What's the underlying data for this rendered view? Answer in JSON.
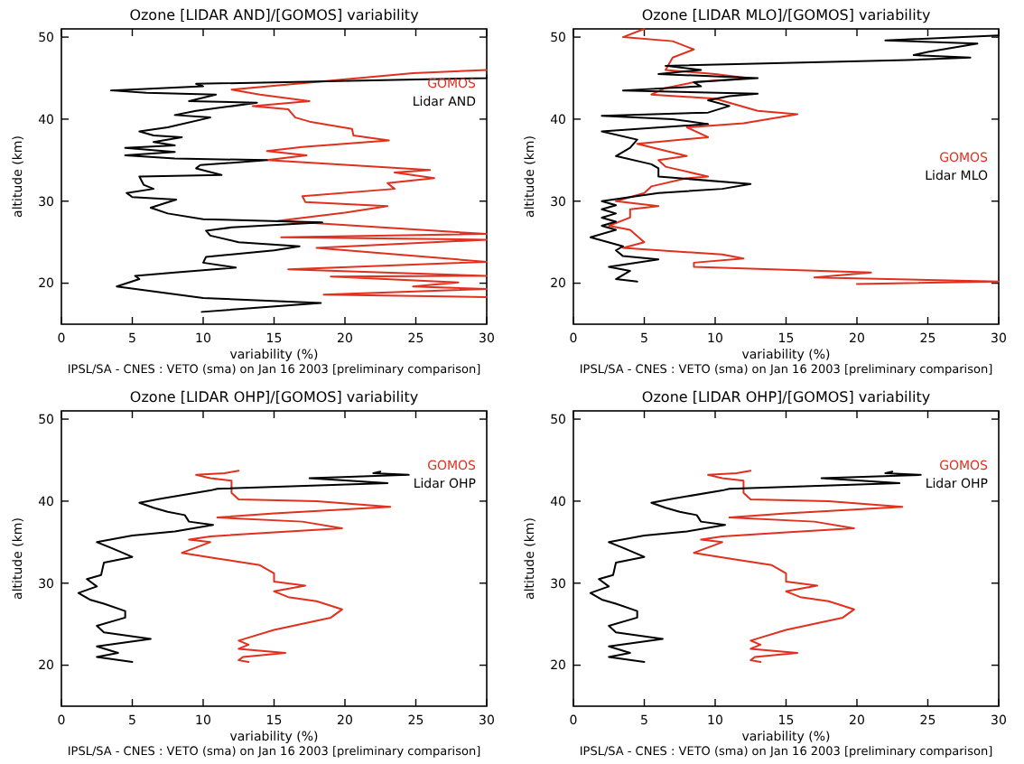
{
  "chart_data": [
    {
      "type": "line",
      "title": "Ozone [LIDAR AND]/[GOMOS] variability",
      "xlabel": "variability (%)",
      "ylabel": "altitude (km)",
      "annotations": [
        "IPSL/SA - CNES : VETO (sma) on Jan 16 2003 [preliminary comparison]"
      ],
      "xlim": [
        0,
        30
      ],
      "ylim": [
        15,
        51
      ],
      "xticks": [
        0,
        5,
        10,
        15,
        20,
        25,
        30
      ],
      "yticks": [
        20,
        30,
        40,
        50
      ],
      "legend": "top right",
      "series": [
        {
          "name": "GOMOS",
          "color": "#e0301e",
          "x": [
            30,
            24.8,
            12,
            14,
            17.5,
            13.5,
            16,
            16.5,
            17.5,
            20.5,
            20.6,
            23.1,
            17,
            14.5,
            17.3,
            14.5,
            26,
            23.5,
            26.3,
            23,
            23.5,
            17,
            17.2,
            23,
            20,
            15.3,
            30,
            15.5,
            30,
            18,
            30,
            16,
            30,
            19,
            28,
            24.8,
            30,
            18.5,
            30
          ],
          "values": [
            46,
            45.6,
            43.6,
            43,
            42.2,
            41.6,
            41.2,
            40.2,
            39.7,
            38.8,
            38,
            37.4,
            36.6,
            36.1,
            35.6,
            35,
            33.8,
            33.5,
            32.8,
            32.2,
            31.5,
            30.6,
            29.9,
            29.4,
            28.6,
            27.6,
            26,
            25.6,
            25.3,
            24.3,
            22.6,
            21.7,
            20.9,
            20.8,
            20.1,
            19.6,
            19.3,
            18.6,
            18.3
          ]
        },
        {
          "name": "Lidar AND",
          "color": "#000000",
          "x": [
            9.9,
            18.3,
            10,
            3.9,
            5.5,
            5.2,
            8,
            12.3,
            10,
            10.2,
            15,
            16.8,
            12.5,
            10.5,
            10.2,
            12,
            18.4,
            10,
            7.5,
            6.3,
            8.1,
            5,
            4.6,
            6.5,
            5.8,
            5.5,
            11.3,
            9.5,
            9.8,
            14.5,
            8,
            4.5,
            8,
            4.5,
            8,
            6.5,
            8.5,
            6.5,
            5.5,
            7.5,
            10.5,
            8,
            9.5,
            13.8,
            9,
            10.9,
            6,
            3.5,
            10,
            9.5,
            30,
            30
          ],
          "values": [
            16.5,
            17.6,
            18.2,
            19.6,
            20.5,
            20.9,
            21.3,
            21.9,
            22.5,
            23.2,
            24,
            24.5,
            25,
            25.8,
            26.4,
            26.8,
            27.4,
            27.8,
            28.5,
            29.2,
            30.2,
            30.5,
            31,
            31.5,
            32,
            33,
            33.2,
            34,
            34.4,
            35,
            35.2,
            35.6,
            36,
            36.5,
            36.8,
            37.2,
            37.8,
            38,
            38.5,
            39,
            40.2,
            40.5,
            41,
            42,
            42.2,
            43,
            43.2,
            43.5,
            44,
            44.3,
            45,
            45.3
          ]
        }
      ]
    },
    {
      "type": "line",
      "title": "Ozone [LIDAR MLO]/[GOMOS] variability",
      "xlabel": "variability (%)",
      "ylabel": "altitude (km)",
      "annotations": [
        "IPSL/SA - CNES : VETO (sma) on Jan 16 2003 [preliminary comparison]"
      ],
      "xlim": [
        0,
        30
      ],
      "ylim": [
        15,
        51
      ],
      "xticks": [
        0,
        5,
        10,
        15,
        20,
        25,
        30
      ],
      "yticks": [
        20,
        30,
        40,
        50
      ],
      "legend": "right",
      "series": [
        {
          "name": "GOMOS",
          "color": "#e0301e",
          "x": [
            5,
            3.5,
            7,
            8.5,
            7,
            6.5,
            10,
            12.3,
            8.5,
            6.5,
            5.5,
            10,
            12,
            13,
            15.8,
            12,
            8,
            9.5,
            4.5,
            8,
            6,
            6.5,
            9.5,
            8,
            5.5,
            5,
            3,
            6,
            4,
            4,
            2.5,
            4,
            5,
            3.5,
            10.5,
            12,
            8.5,
            8.5,
            21,
            17,
            30,
            20
          ],
          "values": [
            51,
            50,
            49.5,
            48.5,
            47.5,
            46,
            45.5,
            45,
            44.5,
            43.8,
            43,
            42.5,
            41.5,
            41,
            40.6,
            39.5,
            39,
            37.8,
            37,
            35.5,
            35,
            34.2,
            33,
            32.8,
            31.8,
            31,
            30,
            29.4,
            29,
            28,
            27,
            26.5,
            25,
            24.3,
            23.5,
            23,
            22.5,
            22,
            21.3,
            20.7,
            20.2,
            19.9
          ]
        },
        {
          "name": "Lidar MLO",
          "color": "#000000",
          "x": [
            4.5,
            3,
            4,
            2.5,
            6,
            3.5,
            3,
            3.5,
            1.2,
            3,
            2,
            3,
            2,
            3,
            2,
            3,
            2,
            6,
            10.5,
            12.5,
            6,
            6,
            5.5,
            3,
            4,
            4.5,
            2,
            9.5,
            7,
            2,
            9.5,
            11,
            9.5,
            11,
            13,
            3.5,
            9,
            8.5,
            13,
            6,
            9,
            6.5,
            23.5,
            28,
            24,
            25,
            28.5,
            22,
            30
          ],
          "values": [
            20.2,
            20.5,
            21.5,
            22,
            22.9,
            23.3,
            24,
            24.5,
            25.6,
            26.5,
            27,
            27.5,
            28,
            28.5,
            29,
            29.5,
            30,
            31,
            31.5,
            32.1,
            33,
            34,
            34.5,
            35.5,
            36.5,
            37.5,
            38.5,
            39.4,
            40,
            40.4,
            40.8,
            41.6,
            42.3,
            42.8,
            43.1,
            43.5,
            44,
            44.5,
            45,
            45.5,
            46,
            46.5,
            47.2,
            47.5,
            47.8,
            48.2,
            49.2,
            49.6,
            50.2
          ]
        }
      ]
    },
    {
      "type": "line",
      "title": "Ozone [LIDAR OHP]/[GOMOS] variability",
      "xlabel": "variability (%)",
      "ylabel": "altitude (km)",
      "annotations": [
        "IPSL/SA - CNES : VETO (sma) on Jan 16 2003 [preliminary comparison]"
      ],
      "xlim": [
        0,
        30
      ],
      "ylim": [
        15,
        51
      ],
      "xticks": [
        0,
        5,
        10,
        15,
        20,
        25,
        30
      ],
      "yticks": [
        20,
        30,
        40,
        50
      ],
      "legend": "top right",
      "series": [
        {
          "name": "GOMOS",
          "color": "#e0301e",
          "x": [
            12.5,
            11.5,
            9.5,
            10.5,
            12,
            12,
            12.5,
            18,
            23.2,
            15,
            11,
            17,
            19.8,
            15,
            10.5,
            9,
            10.5,
            8.5,
            11,
            14,
            15,
            15,
            17.2,
            15,
            16,
            18,
            19.8,
            19,
            15,
            12.5,
            13.2,
            12.5,
            15.8,
            12.8,
            12.5,
            13.2
          ],
          "values": [
            43.7,
            43.4,
            43.2,
            42.8,
            42.5,
            41,
            40.2,
            40,
            39.3,
            38.5,
            38,
            37.5,
            36.7,
            36.2,
            35.7,
            35.3,
            35,
            33.7,
            33,
            32.2,
            31.2,
            30.2,
            29.7,
            29,
            28.3,
            27.8,
            26.8,
            25.8,
            24.3,
            23,
            22.5,
            22,
            21.5,
            21,
            20.6,
            20.4
          ]
        },
        {
          "name": "Lidar OHP",
          "color": "#000000",
          "x": [
            5,
            2.5,
            4,
            2.5,
            6.3,
            3,
            2.5,
            4.5,
            4.5,
            3,
            2,
            1.2,
            2.5,
            1.8,
            2.8,
            3,
            5,
            3.5,
            2.5,
            5,
            8,
            10.7,
            9,
            8.7,
            7.5,
            6.5,
            5.5,
            7,
            10.5,
            11,
            23,
            17.5,
            24.5,
            22,
            22.5
          ],
          "values": [
            20.4,
            21,
            21.5,
            22.3,
            23.2,
            24,
            24.8,
            25.8,
            26.6,
            27.5,
            28,
            28.8,
            29.6,
            30.5,
            31,
            32.5,
            33.2,
            34.3,
            35,
            35.8,
            36.3,
            37.1,
            37.5,
            38.3,
            38.7,
            39.2,
            39.8,
            40.3,
            41.3,
            41.5,
            42.2,
            42.8,
            43.2,
            43.4,
            43.6
          ]
        }
      ]
    },
    {
      "type": "line",
      "title": "Ozone [LIDAR OHP]/[GOMOS] variability",
      "xlabel": "variability (%)",
      "ylabel": "altitude (km)",
      "annotations": [
        "IPSL/SA - CNES : VETO (sma) on Jan 16 2003 [preliminary comparison]"
      ],
      "xlim": [
        0,
        30
      ],
      "ylim": [
        15,
        51
      ],
      "xticks": [
        0,
        5,
        10,
        15,
        20,
        25,
        30
      ],
      "yticks": [
        20,
        30,
        40,
        50
      ],
      "legend": "top right",
      "series": [
        {
          "name": "GOMOS",
          "color": "#e0301e",
          "x": [
            12.5,
            11.5,
            9.5,
            10.5,
            12,
            12,
            12.5,
            18,
            23.2,
            15,
            11,
            17,
            19.8,
            15,
            10.5,
            9,
            10.5,
            8.5,
            11,
            14,
            15,
            15,
            17.2,
            15,
            16,
            18,
            19.8,
            19,
            15,
            12.5,
            13.2,
            12.5,
            15.8,
            12.8,
            12.5,
            13.2
          ],
          "values": [
            43.7,
            43.4,
            43.2,
            42.8,
            42.5,
            41,
            40.2,
            40,
            39.3,
            38.5,
            38,
            37.5,
            36.7,
            36.2,
            35.7,
            35.3,
            35,
            33.7,
            33,
            32.2,
            31.2,
            30.2,
            29.7,
            29,
            28.3,
            27.8,
            26.8,
            25.8,
            24.3,
            23,
            22.5,
            22,
            21.5,
            21,
            20.6,
            20.4
          ]
        },
        {
          "name": "Lidar OHP",
          "color": "#000000",
          "x": [
            5,
            2.5,
            4,
            2.5,
            6.3,
            3,
            2.5,
            4.5,
            4.5,
            3,
            2,
            1.2,
            2.5,
            1.8,
            2.8,
            3,
            5,
            3.5,
            2.5,
            5,
            8,
            10.7,
            9,
            8.7,
            7.5,
            6.5,
            5.5,
            7,
            10.5,
            11,
            23,
            17.5,
            24.5,
            22,
            22.5
          ],
          "values": [
            20.4,
            21,
            21.5,
            22.3,
            23.2,
            24,
            24.8,
            25.8,
            26.6,
            27.5,
            28,
            28.8,
            29.6,
            30.5,
            31,
            32.5,
            33.2,
            34.3,
            35,
            35.8,
            36.3,
            37.1,
            37.5,
            38.3,
            38.7,
            39.2,
            39.8,
            40.3,
            41.3,
            41.5,
            42.2,
            42.8,
            43.2,
            43.4,
            43.6
          ]
        }
      ]
    }
  ]
}
